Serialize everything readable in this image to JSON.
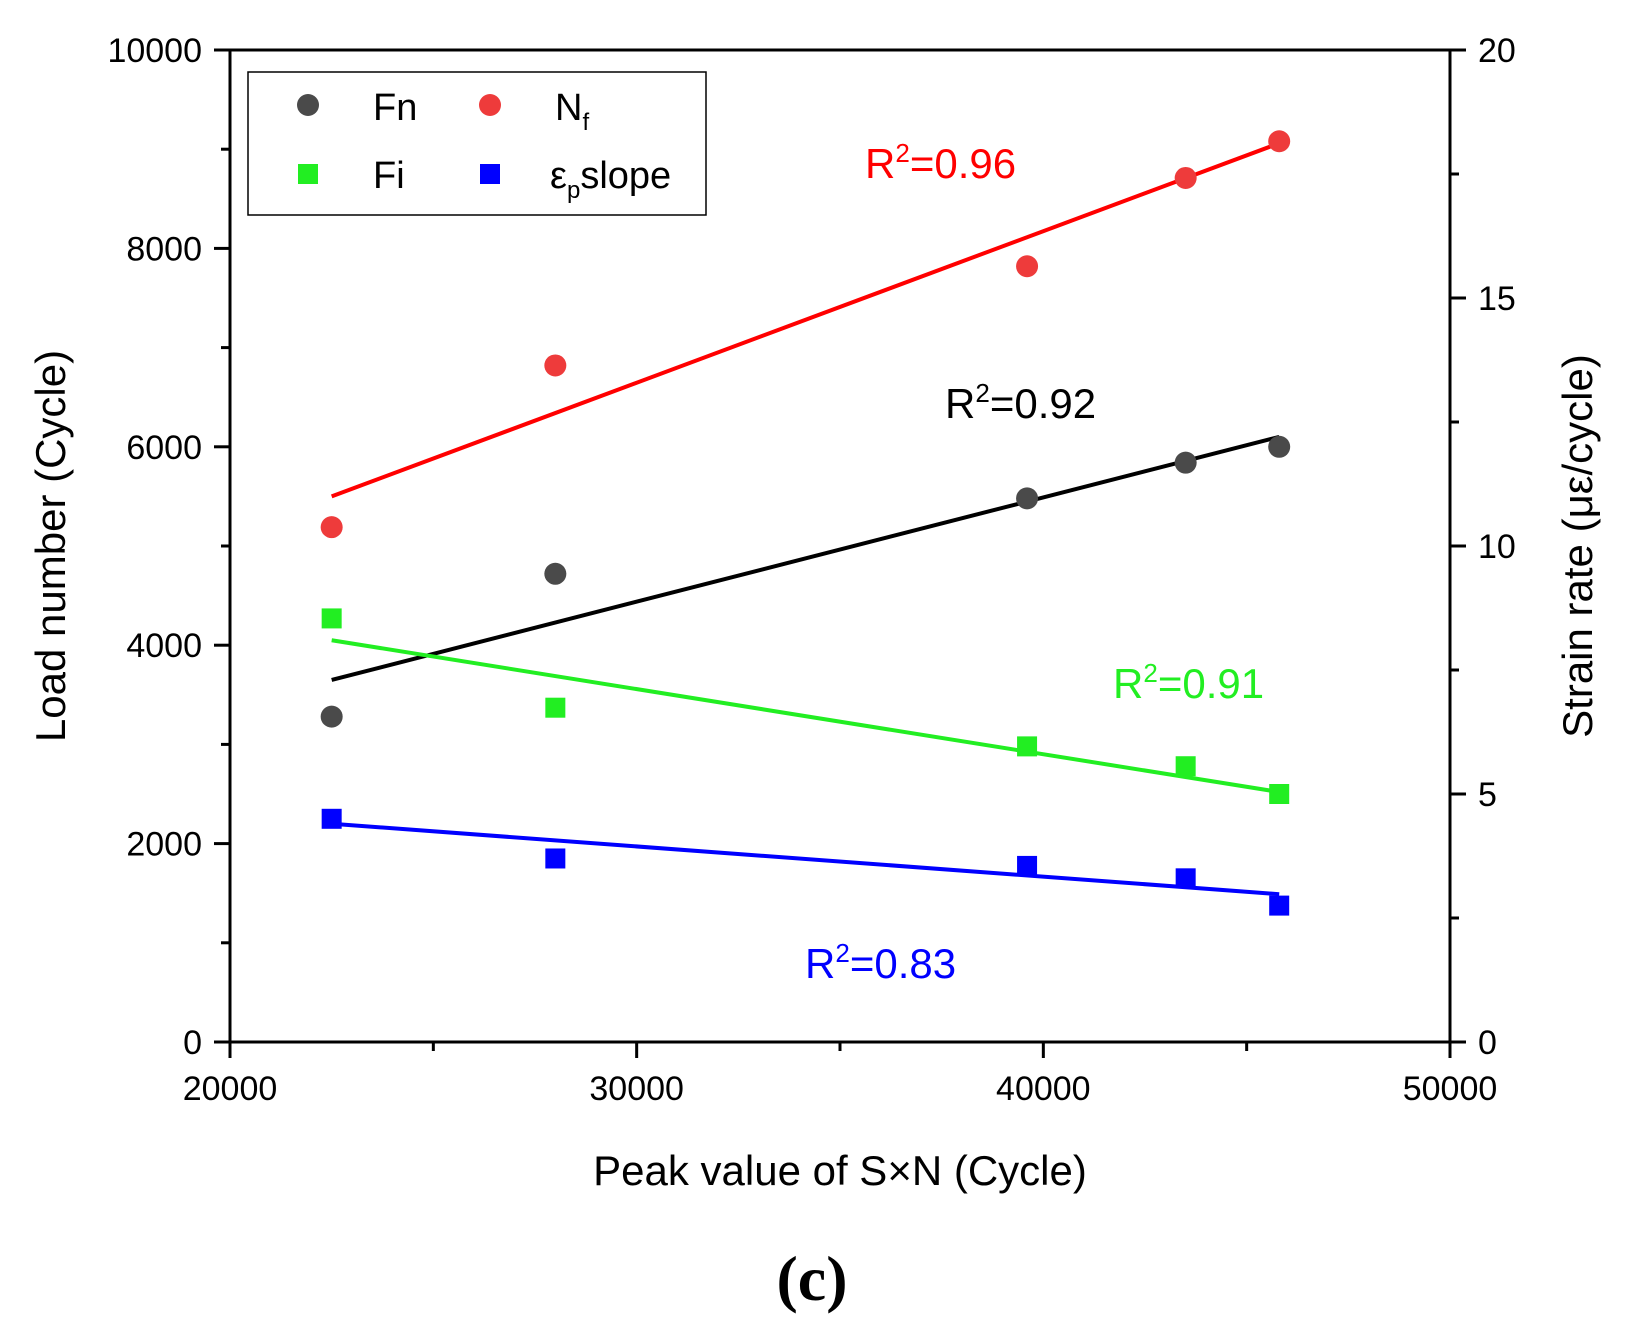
{
  "chart_data": {
    "type": "scatter",
    "xlabel": "Peak value of S×N (Cycle)",
    "ylabel": "Load number (Cycle)",
    "y2label": "Strain rate (με/cycle)",
    "xlim": [
      20000,
      50000
    ],
    "ylim": [
      0,
      10000
    ],
    "y2lim": [
      0,
      20
    ],
    "xticks": [
      20000,
      30000,
      40000,
      50000
    ],
    "xticks_minor": [
      25000,
      35000,
      45000
    ],
    "yticks": [
      0,
      2000,
      4000,
      6000,
      8000,
      10000
    ],
    "yticks_minor": [
      1000,
      3000,
      5000,
      7000,
      9000
    ],
    "y2ticks": [
      0,
      5,
      10,
      15,
      20
    ],
    "y2ticks_minor": [
      2.5,
      7.5,
      12.5,
      17.5
    ],
    "x": [
      22500,
      28000,
      39600,
      43500,
      45800
    ],
    "series": [
      {
        "name": "Fn",
        "axis": "left",
        "marker": "circle",
        "color": "#4a4a4a",
        "line_color": "#000000",
        "values": [
          3280,
          4720,
          5480,
          5840,
          6000
        ],
        "fit": [
          3650,
          6100
        ],
        "r2": "R²=0.92"
      },
      {
        "name": "N_f",
        "axis": "left",
        "marker": "circle",
        "color": "#ee3b3b",
        "line_color": "#ff0000",
        "values": [
          5190,
          6820,
          7820,
          8710,
          9080
        ],
        "fit": [
          5500,
          9060
        ],
        "r2": "R²=0.96"
      },
      {
        "name": "Fi",
        "axis": "left",
        "marker": "square",
        "color": "#22ee22",
        "line_color": "#22ee22",
        "values": [
          4270,
          3370,
          2980,
          2780,
          2500
        ],
        "fit": [
          4050,
          2520
        ],
        "r2": "R²=0.91"
      },
      {
        "name": "εp slope",
        "axis": "right",
        "marker": "square",
        "color": "#0000ff",
        "line_color": "#0000ff",
        "values": [
          4.5,
          3.7,
          3.55,
          3.3,
          2.75
        ],
        "fit": [
          4.4,
          2.98
        ],
        "r2": "R²=0.83"
      }
    ],
    "legend": {
      "placement": "top-left",
      "entries": [
        {
          "main": "Fn",
          "sub": ""
        },
        {
          "main": "N",
          "sub": "f"
        },
        {
          "main": "Fi",
          "sub": ""
        },
        {
          "main": "ε",
          "sub": "p",
          "rest": "slope"
        }
      ]
    },
    "r2_labels": {
      "fn": {
        "base": "R",
        "sup": "2",
        "rest": "=0.92"
      },
      "nf": {
        "base": "R",
        "sup": "2",
        "rest": "=0.96"
      },
      "fi": {
        "base": "R",
        "sup": "2",
        "rest": "=0.91"
      },
      "ep": {
        "base": "R",
        "sup": "2",
        "rest": "=0.83"
      }
    },
    "panel_label": "(c)"
  }
}
